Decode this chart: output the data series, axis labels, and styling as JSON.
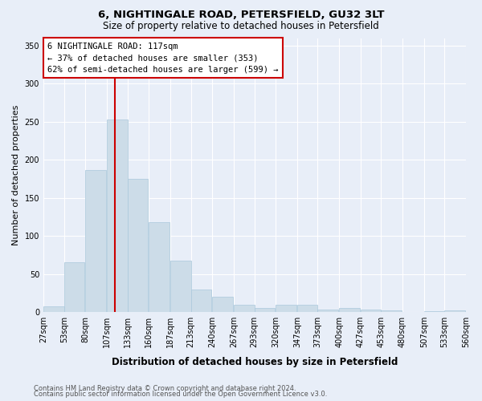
{
  "title": "6, NIGHTINGALE ROAD, PETERSFIELD, GU32 3LT",
  "subtitle": "Size of property relative to detached houses in Petersfield",
  "xlabel": "Distribution of detached houses by size in Petersfield",
  "ylabel": "Number of detached properties",
  "bar_color": "#ccdce8",
  "bar_edgecolor": "#aac8dc",
  "vline_x": 117,
  "vline_color": "#cc0000",
  "annotation_title": "6 NIGHTINGALE ROAD: 117sqm",
  "annotation_line2": "← 37% of detached houses are smaller (353)",
  "annotation_line3": "62% of semi-detached houses are larger (599) →",
  "annotation_box_edgecolor": "#cc0000",
  "bins": [
    27,
    53,
    80,
    107,
    133,
    160,
    187,
    213,
    240,
    267,
    293,
    320,
    347,
    373,
    400,
    427,
    453,
    480,
    507,
    533,
    560
  ],
  "counts": [
    8,
    65,
    187,
    253,
    175,
    118,
    68,
    30,
    20,
    10,
    5,
    10,
    10,
    3,
    5,
    3,
    2,
    0,
    1,
    2
  ],
  "ylim": [
    0,
    360
  ],
  "yticks": [
    0,
    50,
    100,
    150,
    200,
    250,
    300,
    350
  ],
  "footnote1": "Contains HM Land Registry data © Crown copyright and database right 2024.",
  "footnote2": "Contains public sector information licensed under the Open Government Licence v3.0.",
  "bg_color": "#e8eef8",
  "plot_bg_color": "#e8eef8",
  "grid_color": "#ffffff",
  "tick_fontsize": 7,
  "ylabel_fontsize": 8,
  "xlabel_fontsize": 8.5
}
